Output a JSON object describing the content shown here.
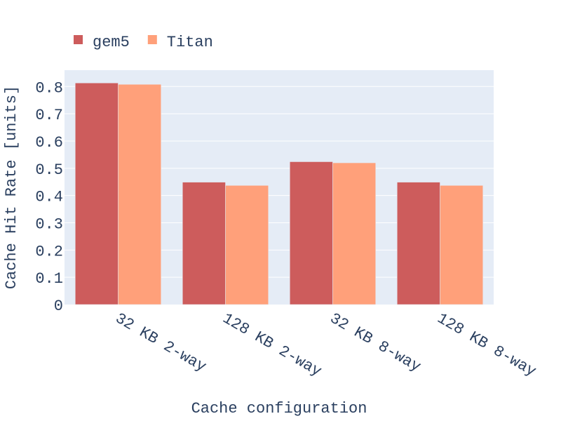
{
  "chart_data": {
    "type": "bar",
    "categories": [
      "32 KB 2-way",
      "128 KB 2-way",
      "32 KB 8-way",
      "128 KB 8-way"
    ],
    "series": [
      {
        "name": "gem5",
        "values": [
          0.813,
          0.449,
          0.524,
          0.449
        ],
        "color": "#cd5c5c"
      },
      {
        "name": "Titan",
        "values": [
          0.808,
          0.437,
          0.52,
          0.437
        ],
        "color": "#ffa07a"
      }
    ],
    "xlabel": "Cache configuration",
    "ylabel": "Cache Hit Rate [units]",
    "ylim": [
      0,
      0.86
    ],
    "yticks": [
      0,
      0.1,
      0.2,
      0.3,
      0.4,
      0.5,
      0.6,
      0.7,
      0.8
    ],
    "ytick_labels": [
      "0",
      "0.1",
      "0.2",
      "0.3",
      "0.4",
      "0.5",
      "0.6",
      "0.7",
      "0.8"
    ],
    "grid": true,
    "legend_position": "top-left, horizontal",
    "plot_background": "#e5ecf6",
    "text_color": "#2a3f5f",
    "gridline_color": "#ffffff"
  }
}
